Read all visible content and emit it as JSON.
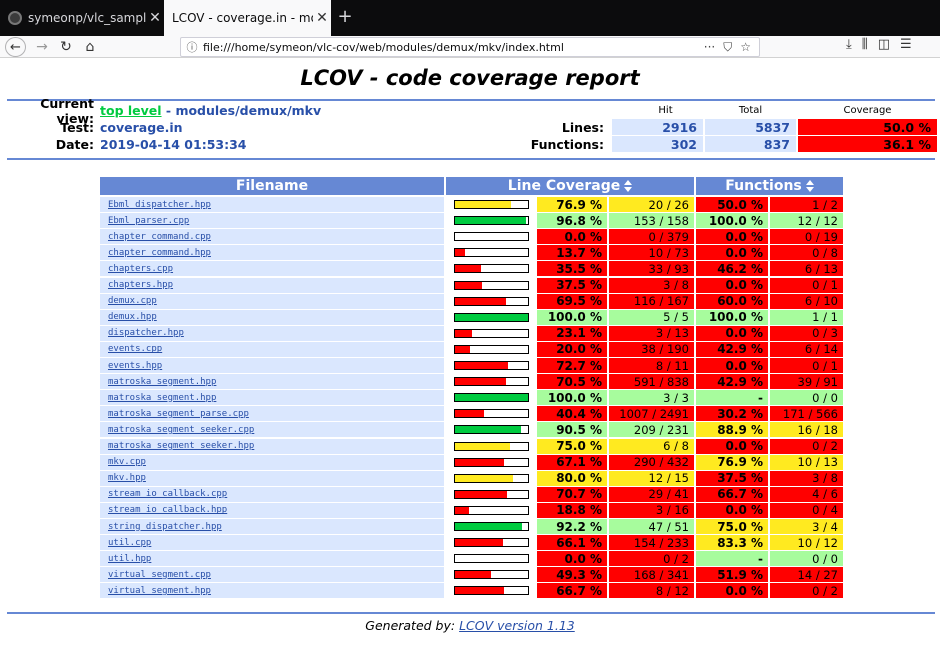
{
  "browser": {
    "tabs": [
      {
        "label": "symeonp/vlc_samples: N",
        "active": false
      },
      {
        "label": "LCOV - coverage.in - module",
        "active": true
      }
    ],
    "new_tab": "+",
    "url": "file:///home/symeon/vlc-cov/web/modules/demux/mkv/index.html",
    "url_actions": [
      "···",
      "⛉",
      "☆"
    ]
  },
  "report": {
    "title": "LCOV - code coverage report",
    "current_view_label": "Current view:",
    "current_view_link": "top level",
    "current_view_path": " - modules/demux/mkv",
    "test_label": "Test:",
    "test_value": "coverage.in",
    "date_label": "Date:",
    "date_value": "2019-04-14 01:53:34",
    "summary": {
      "head_hit": "Hit",
      "head_total": "Total",
      "head_coverage": "Coverage",
      "lines_label": "Lines:",
      "lines_hit": "2916",
      "lines_total": "5837",
      "lines_cov": "50.0 %",
      "functions_label": "Functions:",
      "functions_hit": "302",
      "functions_total": "837",
      "functions_cov": "36.1 %"
    },
    "table_headers": {
      "filename": "Filename",
      "line_coverage": "Line Coverage",
      "functions": "Functions"
    },
    "footer_prefix": "Generated by: ",
    "footer_link": "LCOV version 1.13",
    "colors": {
      "hi": "#a7fc9d",
      "med": "#ffea20",
      "lo": "#ff0000",
      "bar_green": "#00cb40",
      "bar_yellow": "#ffea20",
      "bar_red": "#ff0000"
    }
  },
  "files": [
    {
      "name": "Ebml_dispatcher.hpp",
      "line_pct": "76.9 %",
      "line_frac": 0.769,
      "line_hit": "20 / 26",
      "line_class": "med",
      "func_pct": "50.0 %",
      "func_hit": "1 / 2",
      "func_class": "lo"
    },
    {
      "name": "Ebml_parser.cpp",
      "line_pct": "96.8 %",
      "line_frac": 0.968,
      "line_hit": "153 / 158",
      "line_class": "hi",
      "func_pct": "100.0 %",
      "func_hit": "12 / 12",
      "func_class": "hi"
    },
    {
      "name": "chapter_command.cpp",
      "line_pct": "0.0 %",
      "line_frac": 0.0,
      "line_hit": "0 / 379",
      "line_class": "lo",
      "func_pct": "0.0 %",
      "func_hit": "0 / 19",
      "func_class": "lo"
    },
    {
      "name": "chapter_command.hpp",
      "line_pct": "13.7 %",
      "line_frac": 0.137,
      "line_hit": "10 / 73",
      "line_class": "lo",
      "func_pct": "0.0 %",
      "func_hit": "0 / 8",
      "func_class": "lo"
    },
    {
      "name": "chapters.cpp",
      "line_pct": "35.5 %",
      "line_frac": 0.355,
      "line_hit": "33 / 93",
      "line_class": "lo",
      "func_pct": "46.2 %",
      "func_hit": "6 / 13",
      "func_class": "lo"
    },
    {
      "name": "chapters.hpp",
      "line_pct": "37.5 %",
      "line_frac": 0.375,
      "line_hit": "3 / 8",
      "line_class": "lo",
      "func_pct": "0.0 %",
      "func_hit": "0 / 1",
      "func_class": "lo"
    },
    {
      "name": "demux.cpp",
      "line_pct": "69.5 %",
      "line_frac": 0.695,
      "line_hit": "116 / 167",
      "line_class": "lo",
      "func_pct": "60.0 %",
      "func_hit": "6 / 10",
      "func_class": "lo"
    },
    {
      "name": "demux.hpp",
      "line_pct": "100.0 %",
      "line_frac": 1.0,
      "line_hit": "5 / 5",
      "line_class": "hi",
      "func_pct": "100.0 %",
      "func_hit": "1 / 1",
      "func_class": "hi"
    },
    {
      "name": "dispatcher.hpp",
      "line_pct": "23.1 %",
      "line_frac": 0.231,
      "line_hit": "3 / 13",
      "line_class": "lo",
      "func_pct": "0.0 %",
      "func_hit": "0 / 3",
      "func_class": "lo"
    },
    {
      "name": "events.cpp",
      "line_pct": "20.0 %",
      "line_frac": 0.2,
      "line_hit": "38 / 190",
      "line_class": "lo",
      "func_pct": "42.9 %",
      "func_hit": "6 / 14",
      "func_class": "lo"
    },
    {
      "name": "events.hpp",
      "line_pct": "72.7 %",
      "line_frac": 0.727,
      "line_hit": "8 / 11",
      "line_class": "lo",
      "func_pct": "0.0 %",
      "func_hit": "0 / 1",
      "func_class": "lo"
    },
    {
      "name": "matroska_segment.hpp",
      "line_pct": "70.5 %",
      "line_frac": 0.705,
      "line_hit": "591 / 838",
      "line_class": "lo",
      "func_pct": "42.9 %",
      "func_hit": "39 / 91",
      "func_class": "lo"
    },
    {
      "name": "matroska_segment.hpp",
      "line_pct": "100.0 %",
      "line_frac": 1.0,
      "line_hit": "3 / 3",
      "line_class": "hi",
      "func_pct": "-",
      "func_hit": "0 / 0",
      "func_class": "hi"
    },
    {
      "name": "matroska_segment_parse.cpp",
      "line_pct": "40.4 %",
      "line_frac": 0.404,
      "line_hit": "1007 / 2491",
      "line_class": "lo",
      "func_pct": "30.2 %",
      "func_hit": "171 / 566",
      "func_class": "lo"
    },
    {
      "name": "matroska_segment_seeker.cpp",
      "line_pct": "90.5 %",
      "line_frac": 0.905,
      "line_hit": "209 / 231",
      "line_class": "hi",
      "func_pct": "88.9 %",
      "func_hit": "16 / 18",
      "func_class": "med"
    },
    {
      "name": "matroska_segment_seeker.hpp",
      "line_pct": "75.0 %",
      "line_frac": 0.75,
      "line_hit": "6 / 8",
      "line_class": "med",
      "func_pct": "0.0 %",
      "func_hit": "0 / 2",
      "func_class": "lo"
    },
    {
      "name": "mkv.cpp",
      "line_pct": "67.1 %",
      "line_frac": 0.671,
      "line_hit": "290 / 432",
      "line_class": "lo",
      "func_pct": "76.9 %",
      "func_hit": "10 / 13",
      "func_class": "med"
    },
    {
      "name": "mkv.hpp",
      "line_pct": "80.0 %",
      "line_frac": 0.8,
      "line_hit": "12 / 15",
      "line_class": "med",
      "func_pct": "37.5 %",
      "func_hit": "3 / 8",
      "func_class": "lo"
    },
    {
      "name": "stream_io_callback.cpp",
      "line_pct": "70.7 %",
      "line_frac": 0.707,
      "line_hit": "29 / 41",
      "line_class": "lo",
      "func_pct": "66.7 %",
      "func_hit": "4 / 6",
      "func_class": "lo"
    },
    {
      "name": "stream_io_callback.hpp",
      "line_pct": "18.8 %",
      "line_frac": 0.188,
      "line_hit": "3 / 16",
      "line_class": "lo",
      "func_pct": "0.0 %",
      "func_hit": "0 / 4",
      "func_class": "lo"
    },
    {
      "name": "string_dispatcher.hpp",
      "line_pct": "92.2 %",
      "line_frac": 0.922,
      "line_hit": "47 / 51",
      "line_class": "hi",
      "func_pct": "75.0 %",
      "func_hit": "3 / 4",
      "func_class": "med"
    },
    {
      "name": "util.cpp",
      "line_pct": "66.1 %",
      "line_frac": 0.661,
      "line_hit": "154 / 233",
      "line_class": "lo",
      "func_pct": "83.3 %",
      "func_hit": "10 / 12",
      "func_class": "med"
    },
    {
      "name": "util.hpp",
      "line_pct": "0.0 %",
      "line_frac": 0.0,
      "line_hit": "0 / 2",
      "line_class": "lo",
      "func_pct": "-",
      "func_hit": "0 / 0",
      "func_class": "hi"
    },
    {
      "name": "virtual_segment.cpp",
      "line_pct": "49.3 %",
      "line_frac": 0.493,
      "line_hit": "168 / 341",
      "line_class": "lo",
      "func_pct": "51.9 %",
      "func_hit": "14 / 27",
      "func_class": "lo"
    },
    {
      "name": "virtual_segment.hpp",
      "line_pct": "66.7 %",
      "line_frac": 0.667,
      "line_hit": "8 / 12",
      "line_class": "lo",
      "func_pct": "0.0 %",
      "func_hit": "0 / 2",
      "func_class": "lo"
    }
  ]
}
